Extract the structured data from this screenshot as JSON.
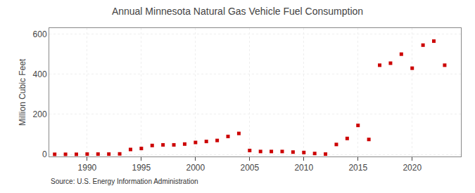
{
  "chart_data": {
    "type": "scatter",
    "title": "Annual Minnesota Natural Gas Vehicle Fuel Consumption",
    "ylabel": "Million Cubic Feet",
    "annotation": "Source: U.S. Energy Information Administration",
    "x": [
      1987,
      1988,
      1989,
      1990,
      1991,
      1992,
      1993,
      1994,
      1995,
      1996,
      1997,
      1998,
      1999,
      2000,
      2001,
      2002,
      2003,
      2004,
      2005,
      2006,
      2007,
      2008,
      2009,
      2010,
      2011,
      2012,
      2013,
      2014,
      2015,
      2016,
      2017,
      2018,
      2019,
      2020,
      2021,
      2022,
      2023
    ],
    "values": [
      1,
      1,
      1,
      2,
      2,
      2,
      3,
      25,
      30,
      45,
      48,
      48,
      52,
      60,
      65,
      70,
      90,
      105,
      20,
      15,
      15,
      15,
      12,
      10,
      5,
      2,
      50,
      80,
      145,
      75,
      445,
      455,
      500,
      430,
      545,
      565,
      445
    ],
    "color": "#cc0000",
    "marker": "square",
    "xlim": [
      1986.5,
      2024.5
    ],
    "xticks": [
      1990,
      1995,
      2000,
      2005,
      2010,
      2015,
      2020
    ],
    "ylim": [
      -10,
      630
    ],
    "yticks": [
      0,
      200,
      400,
      600
    ],
    "grid": true
  }
}
